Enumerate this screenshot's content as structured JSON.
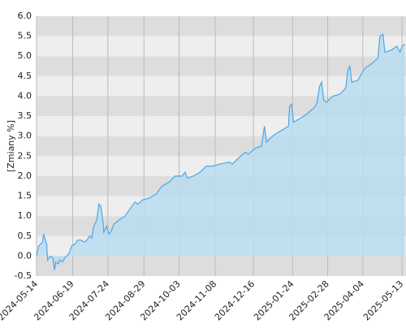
{
  "chart_data": {
    "type": "area",
    "y_label": "[Zmiany %]",
    "x": [
      "2024-05-14",
      "2024-05-16",
      "2024-05-20",
      "2024-05-21",
      "2024-05-24",
      "2024-05-25",
      "2024-05-28",
      "2024-05-30",
      "2024-06-01",
      "2024-06-02",
      "2024-06-05",
      "2024-06-06",
      "2024-06-09",
      "2024-06-11",
      "2024-06-15",
      "2024-06-18",
      "2024-06-21",
      "2024-06-24",
      "2024-06-27",
      "2024-07-01",
      "2024-07-03",
      "2024-07-06",
      "2024-07-08",
      "2024-07-10",
      "2024-07-13",
      "2024-07-15",
      "2024-07-17",
      "2024-07-19",
      "2024-07-20",
      "2024-07-23",
      "2024-07-25",
      "2024-07-27",
      "2024-07-30",
      "2024-08-04",
      "2024-08-10",
      "2024-08-17",
      "2024-08-20",
      "2024-08-23",
      "2024-08-27",
      "2024-09-03",
      "2024-09-10",
      "2024-09-16",
      "2024-09-23",
      "2024-09-29",
      "2024-10-06",
      "2024-10-09",
      "2024-10-11",
      "2024-10-17",
      "2024-10-24",
      "2024-10-30",
      "2024-11-06",
      "2024-11-12",
      "2024-11-22",
      "2024-11-25",
      "2024-12-01",
      "2024-12-08",
      "2024-12-11",
      "2024-12-18",
      "2024-12-24",
      "2024-12-27",
      "2024-12-29",
      "2025-01-04",
      "2025-01-10",
      "2025-01-17",
      "2025-01-20",
      "2025-01-21",
      "2025-01-23",
      "2025-01-25",
      "2025-02-01",
      "2025-02-07",
      "2025-02-14",
      "2025-02-17",
      "2025-02-20",
      "2025-02-22",
      "2025-02-24",
      "2025-02-27",
      "2025-03-05",
      "2025-03-12",
      "2025-03-18",
      "2025-03-20",
      "2025-03-22",
      "2025-03-24",
      "2025-03-30",
      "2025-04-06",
      "2025-04-12",
      "2025-04-19",
      "2025-04-21",
      "2025-04-24",
      "2025-04-26",
      "2025-05-02",
      "2025-05-08",
      "2025-05-11",
      "2025-05-13",
      "2025-05-16"
    ],
    "series": [
      {
        "color": "#4da6e8",
        "fill": "#b8dcef",
        "values": [
          0.0,
          0.25,
          0.35,
          0.55,
          0.3,
          -0.1,
          0.0,
          -0.05,
          -0.35,
          -0.15,
          -0.2,
          -0.1,
          -0.15,
          -0.05,
          0.05,
          0.25,
          0.3,
          0.4,
          0.4,
          0.35,
          0.4,
          0.5,
          0.45,
          0.75,
          0.9,
          1.3,
          1.25,
          0.9,
          0.6,
          0.75,
          0.55,
          0.6,
          0.8,
          0.9,
          1.0,
          1.25,
          1.35,
          1.3,
          1.4,
          1.45,
          1.55,
          1.75,
          1.85,
          2.0,
          2.0,
          2.1,
          1.95,
          2.0,
          2.1,
          2.25,
          2.25,
          2.3,
          2.35,
          2.3,
          2.45,
          2.6,
          2.55,
          2.7,
          2.75,
          3.25,
          2.85,
          3.0,
          3.1,
          3.2,
          3.25,
          3.75,
          3.8,
          3.35,
          3.45,
          3.55,
          3.7,
          3.8,
          4.25,
          4.35,
          3.9,
          3.85,
          4.0,
          4.05,
          4.2,
          4.65,
          4.75,
          4.35,
          4.4,
          4.7,
          4.8,
          4.95,
          5.5,
          5.55,
          5.1,
          5.15,
          5.25,
          5.1,
          5.25,
          5.3
        ]
      }
    ],
    "xlim": [
      "2024-05-14",
      "2025-05-17"
    ],
    "xticks": [
      "2024-05-14",
      "2024-06-19",
      "2024-07-24",
      "2024-08-29",
      "2024-10-03",
      "2024-11-08",
      "2024-12-16",
      "2025-01-24",
      "2025-02-28",
      "2025-04-04",
      "2025-05-13"
    ],
    "ylim": [
      -0.5,
      6.0
    ],
    "yticks": [
      -0.5,
      {
        "value": 0,
        "label": "0.0"
      },
      0.5,
      {
        "value": 1,
        "label": "1.0"
      },
      1.5,
      {
        "value": 2,
        "label": "2.0"
      },
      2.5,
      {
        "value": 3,
        "label": "3.0"
      },
      3.5,
      {
        "value": 4,
        "label": "4.0"
      },
      4.5,
      {
        "value": 5,
        "label": "5.0"
      },
      5.5,
      {
        "value": 6,
        "label": "6.0"
      }
    ],
    "band_colors": [
      "#dddddd",
      "#eeeeee"
    ],
    "grid_color": "#bbbbbb"
  }
}
